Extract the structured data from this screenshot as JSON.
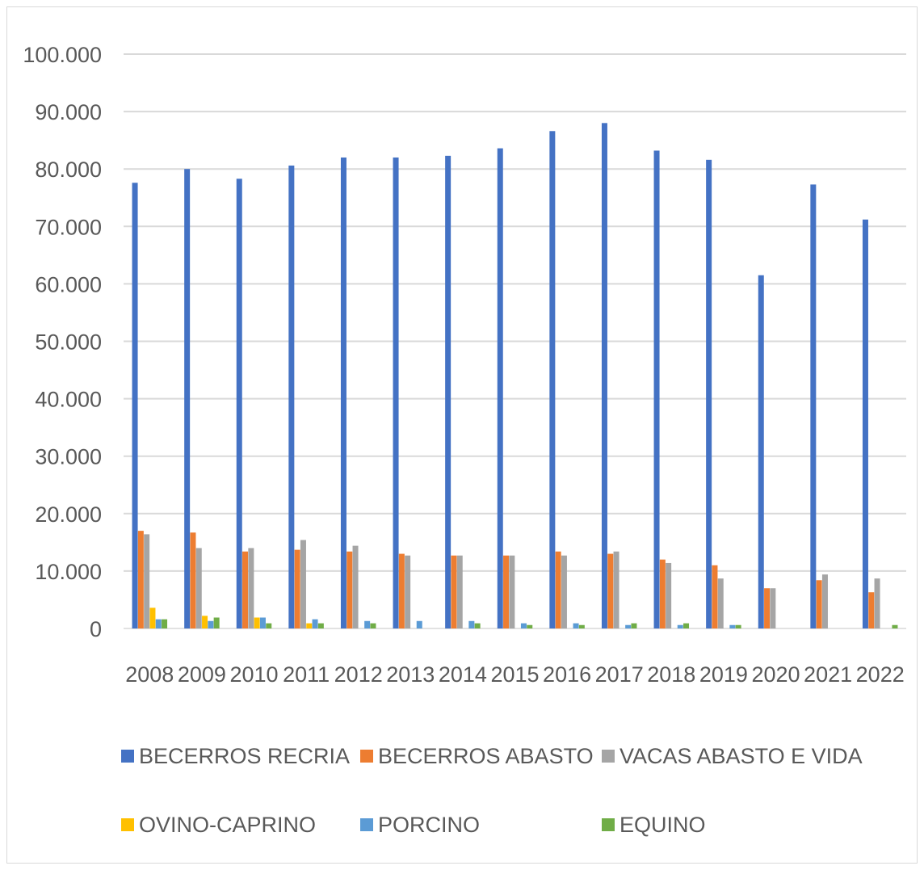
{
  "chart_data": {
    "type": "bar",
    "title": "",
    "xlabel": "",
    "ylabel": "",
    "ylim": [
      0,
      100000
    ],
    "yticks": [
      0,
      10000,
      20000,
      30000,
      40000,
      50000,
      60000,
      70000,
      80000,
      90000,
      100000
    ],
    "ytick_labels": [
      "0",
      "10.000",
      "20.000",
      "30.000",
      "40.000",
      "50.000",
      "60.000",
      "70.000",
      "80.000",
      "90.000",
      "100.000"
    ],
    "grid": true,
    "legend_position": "bottom",
    "categories": [
      "2008",
      "2009",
      "2010",
      "2011",
      "2012",
      "2013",
      "2014",
      "2015",
      "2016",
      "2017",
      "2018",
      "2019",
      "2020",
      "2021",
      "2022"
    ],
    "series": [
      {
        "name": "BECERROS RECRIA",
        "color": "#4472C4",
        "values": [
          77600,
          80000,
          78300,
          80600,
          82000,
          82000,
          82300,
          83600,
          86600,
          88000,
          83200,
          81600,
          61500,
          77300,
          71200
        ]
      },
      {
        "name": "BECERROS ABASTO",
        "color": "#ED7D31",
        "values": [
          17000,
          16700,
          13400,
          13700,
          13400,
          13000,
          12700,
          12700,
          13400,
          13000,
          12000,
          11000,
          7000,
          8400,
          6300
        ]
      },
      {
        "name": "VACAS ABASTO E VIDA",
        "color": "#A5A5A5",
        "values": [
          16400,
          14000,
          14000,
          15400,
          14400,
          12700,
          12700,
          12700,
          12700,
          13400,
          11400,
          8700,
          7000,
          9400,
          8700
        ]
      },
      {
        "name": "OVINO-CAPRINO",
        "color": "#FFC000",
        "values": [
          3600,
          2200,
          1900,
          900,
          0,
          0,
          0,
          0,
          0,
          0,
          0,
          0,
          0,
          0,
          0
        ]
      },
      {
        "name": "PORCINO",
        "color": "#5B9BD5",
        "values": [
          1600,
          1300,
          1900,
          1600,
          1300,
          1300,
          1300,
          900,
          900,
          600,
          600,
          600,
          0,
          0,
          0
        ]
      },
      {
        "name": "EQUINO",
        "color": "#70AD47",
        "values": [
          1600,
          1900,
          900,
          900,
          900,
          0,
          900,
          600,
          600,
          900,
          900,
          600,
          0,
          0,
          600
        ]
      }
    ]
  }
}
